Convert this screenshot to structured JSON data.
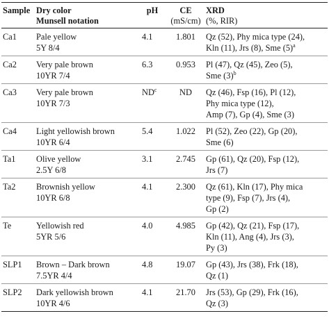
{
  "headers": {
    "sample": "Sample",
    "color_title": "Dry color",
    "color_sub": "Munsell notation",
    "ph": "pH",
    "ce_title": "CE",
    "ce_unit": "(mS/cm)",
    "xrd_title": "XRD",
    "xrd_unit": "(%, RIR)"
  },
  "rows": [
    {
      "sample": "Ca1",
      "color_name": "Pale yellow",
      "munsell": "5Y 8/4",
      "ph": "4.1",
      "ph_note": "",
      "ce": "1.801",
      "xrd_lines": [
        "Qz (52), Phy mica type (24),",
        "Kln (11), Jrs (8), Sme (5)"
      ],
      "xrd_note": "a"
    },
    {
      "sample": "Ca2",
      "color_name": "Very pale brown",
      "munsell": "10YR 7/4",
      "ph": "6.3",
      "ph_note": "",
      "ce": "0.953",
      "xrd_lines": [
        "Pl (47), Qz (45), Zeo (5),",
        "Sme (3)"
      ],
      "xrd_note": "b"
    },
    {
      "sample": "Ca3",
      "color_name": "Very pale brown",
      "munsell": "10YR 7/3",
      "ph": "ND",
      "ph_note": "c",
      "ce": "ND",
      "xrd_lines": [
        "Qz (46), Fsp (16), Pl (12),",
        "Phy mica type (12),",
        "Amp (7), Gp (4), Sme (3)"
      ],
      "xrd_note": ""
    },
    {
      "sample": "Ca4",
      "color_name": "Light yellowish brown",
      "munsell": "10YR 6/4",
      "ph": "5.4",
      "ph_note": "",
      "ce": "1.022",
      "xrd_lines": [
        "Pl (52), Zeo (22), Gp (20),",
        "Sme (6)"
      ],
      "xrd_note": ""
    },
    {
      "sample": "Ta1",
      "color_name": "Olive yellow",
      "munsell": "2.5Y 6/8",
      "ph": "3.1",
      "ph_note": "",
      "ce": "2.745",
      "xrd_lines": [
        "Gp (61), Qz (20), Fsp (12),",
        "Jrs (7)"
      ],
      "xrd_note": ""
    },
    {
      "sample": "Ta2",
      "color_name": "Brownish yellow",
      "munsell": "10YR 6/8",
      "ph": "4.1",
      "ph_note": "",
      "ce": "2.300",
      "xrd_lines": [
        "Qz (61), Kln (17), Phy mica",
        "type (9), Fsp (7), Jrs (4),",
        "Gp (2)"
      ],
      "xrd_note": ""
    },
    {
      "sample": "Te",
      "color_name": "Yellowish red",
      "munsell": "5YR 5/6",
      "ph": "4.0",
      "ph_note": "",
      "ce": "4.985",
      "xrd_lines": [
        "Gp (42), Qz (21), Fsp (17),",
        "Kln (11), Ang (4), Jrs (3),",
        "Py (3)"
      ],
      "xrd_note": ""
    },
    {
      "sample": "SLP1",
      "color_name": "Brown – Dark brown",
      "munsell": "7.5YR 4/4",
      "ph": "4.8",
      "ph_note": "",
      "ce": "19.07",
      "xrd_lines": [
        "Gp (43), Jrs (38), Frk (18),",
        "Qz (1)"
      ],
      "xrd_note": ""
    },
    {
      "sample": "SLP2",
      "color_name": "Dark yellowish brown",
      "munsell": "10YR 4/6",
      "ph": "4.1",
      "ph_note": "",
      "ce": "21.70",
      "xrd_lines": [
        "Jrs (53), Gp (29), Frk (16),",
        "Qz (3)"
      ],
      "xrd_note": ""
    }
  ]
}
